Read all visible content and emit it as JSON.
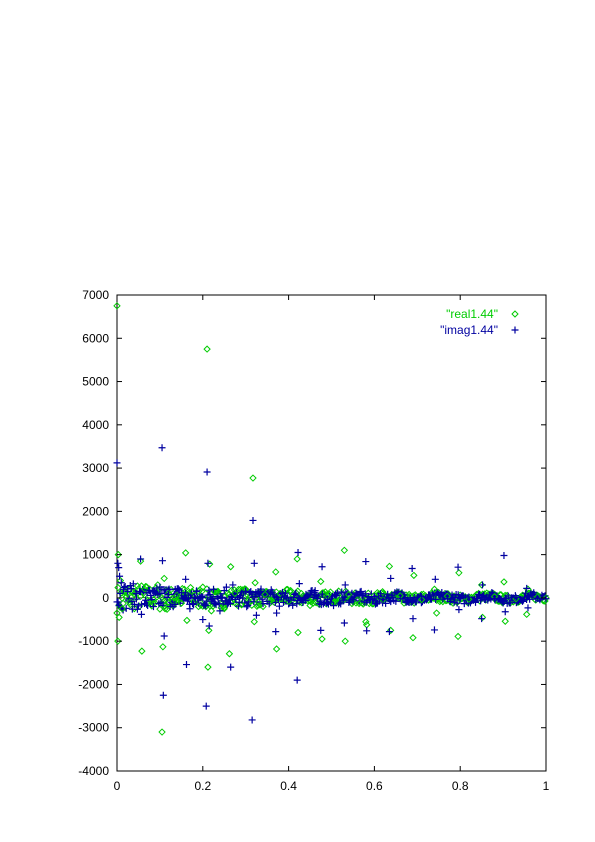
{
  "chart_data": {
    "type": "scatter",
    "xlim": [
      0,
      1
    ],
    "ylim": [
      -4000,
      7000
    ],
    "xticks": [
      0,
      0.2,
      0.4,
      0.6,
      0.8,
      1
    ],
    "xtick_labels": [
      "0",
      "0.2",
      "0.4",
      "0.6",
      "0.8",
      "1"
    ],
    "yticks": [
      -4000,
      -3000,
      -2000,
      -1000,
      0,
      1000,
      2000,
      3000,
      4000,
      5000,
      6000,
      7000
    ],
    "ytick_labels": [
      "-4000",
      "-3000",
      "-2000",
      "-1000",
      "0",
      "1000",
      "2000",
      "3000",
      "4000",
      "5000",
      "6000",
      "7000"
    ],
    "grid": false,
    "legend_position": "top-right",
    "series": [
      {
        "name": "\"real1.44\"",
        "marker": "diamond",
        "color": "#00cc00",
        "points": [
          [
            0.0,
            6750
          ],
          [
            0.002,
            -1000
          ],
          [
            0.003,
            1000
          ],
          [
            0.005,
            -450
          ],
          [
            0.008,
            400
          ],
          [
            0.012,
            -250
          ],
          [
            0.02,
            150
          ],
          [
            0.03,
            -100
          ],
          [
            0.04,
            80
          ],
          [
            0.055,
            850
          ],
          [
            0.058,
            -1230
          ],
          [
            0.065,
            200
          ],
          [
            0.08,
            -150
          ],
          [
            0.095,
            300
          ],
          [
            0.105,
            -3100
          ],
          [
            0.107,
            -1130
          ],
          [
            0.11,
            450
          ],
          [
            0.112,
            -250
          ],
          [
            0.12,
            100
          ],
          [
            0.13,
            -80
          ],
          [
            0.14,
            60
          ],
          [
            0.15,
            -120
          ],
          [
            0.16,
            1040
          ],
          [
            0.163,
            -520
          ],
          [
            0.175,
            150
          ],
          [
            0.19,
            -200
          ],
          [
            0.2,
            250
          ],
          [
            0.21,
            5750
          ],
          [
            0.212,
            -1600
          ],
          [
            0.214,
            -750
          ],
          [
            0.216,
            780
          ],
          [
            0.22,
            -300
          ],
          [
            0.235,
            150
          ],
          [
            0.25,
            -250
          ],
          [
            0.262,
            -1290
          ],
          [
            0.265,
            720
          ],
          [
            0.275,
            100
          ],
          [
            0.29,
            -150
          ],
          [
            0.3,
            200
          ],
          [
            0.317,
            2770
          ],
          [
            0.32,
            -550
          ],
          [
            0.322,
            350
          ],
          [
            0.33,
            -100
          ],
          [
            0.345,
            80
          ],
          [
            0.36,
            -50
          ],
          [
            0.37,
            600
          ],
          [
            0.372,
            -1180
          ],
          [
            0.38,
            100
          ],
          [
            0.4,
            -80
          ],
          [
            0.42,
            900
          ],
          [
            0.422,
            -800
          ],
          [
            0.43,
            100
          ],
          [
            0.45,
            -70
          ],
          [
            0.475,
            380
          ],
          [
            0.478,
            -950
          ],
          [
            0.49,
            50
          ],
          [
            0.51,
            -60
          ],
          [
            0.53,
            1100
          ],
          [
            0.532,
            -1000
          ],
          [
            0.54,
            80
          ],
          [
            0.56,
            -50
          ],
          [
            0.58,
            -550
          ],
          [
            0.582,
            -620
          ],
          [
            0.6,
            60
          ],
          [
            0.62,
            -40
          ],
          [
            0.635,
            730
          ],
          [
            0.638,
            -750
          ],
          [
            0.66,
            50
          ],
          [
            0.69,
            -920
          ],
          [
            0.692,
            520
          ],
          [
            0.71,
            -40
          ],
          [
            0.74,
            200
          ],
          [
            0.745,
            -350
          ],
          [
            0.77,
            40
          ],
          [
            0.795,
            -890
          ],
          [
            0.797,
            580
          ],
          [
            0.82,
            -30
          ],
          [
            0.85,
            300
          ],
          [
            0.852,
            -450
          ],
          [
            0.88,
            30
          ],
          [
            0.902,
            370
          ],
          [
            0.905,
            -540
          ],
          [
            0.93,
            -20
          ],
          [
            0.955,
            -380
          ],
          [
            0.958,
            200
          ],
          [
            0.98,
            20
          ],
          [
            1.0,
            0
          ]
        ]
      },
      {
        "name": "\"imag1.44\"",
        "marker": "plus",
        "color": "#0000a0",
        "points": [
          [
            0.0,
            3120
          ],
          [
            0.002,
            800
          ],
          [
            0.004,
            700
          ],
          [
            0.006,
            500
          ],
          [
            0.01,
            350
          ],
          [
            0.015,
            200
          ],
          [
            0.025,
            150
          ],
          [
            0.035,
            -80
          ],
          [
            0.045,
            100
          ],
          [
            0.055,
            900
          ],
          [
            0.057,
            -380
          ],
          [
            0.07,
            120
          ],
          [
            0.085,
            -200
          ],
          [
            0.1,
            250
          ],
          [
            0.105,
            3470
          ],
          [
            0.106,
            860
          ],
          [
            0.108,
            -2250
          ],
          [
            0.11,
            -880
          ],
          [
            0.12,
            80
          ],
          [
            0.135,
            -150
          ],
          [
            0.15,
            120
          ],
          [
            0.16,
            430
          ],
          [
            0.162,
            -1540
          ],
          [
            0.17,
            -250
          ],
          [
            0.185,
            150
          ],
          [
            0.2,
            -500
          ],
          [
            0.208,
            -2500
          ],
          [
            0.21,
            2910
          ],
          [
            0.212,
            800
          ],
          [
            0.215,
            -650
          ],
          [
            0.225,
            200
          ],
          [
            0.24,
            -300
          ],
          [
            0.255,
            250
          ],
          [
            0.265,
            -1600
          ],
          [
            0.27,
            300
          ],
          [
            0.285,
            -100
          ],
          [
            0.3,
            150
          ],
          [
            0.315,
            -2820
          ],
          [
            0.317,
            1790
          ],
          [
            0.32,
            800
          ],
          [
            0.325,
            -400
          ],
          [
            0.335,
            150
          ],
          [
            0.35,
            -80
          ],
          [
            0.37,
            -780
          ],
          [
            0.372,
            -350
          ],
          [
            0.385,
            100
          ],
          [
            0.4,
            -50
          ],
          [
            0.42,
            -1900
          ],
          [
            0.422,
            1050
          ],
          [
            0.425,
            330
          ],
          [
            0.44,
            -60
          ],
          [
            0.46,
            70
          ],
          [
            0.475,
            -750
          ],
          [
            0.478,
            720
          ],
          [
            0.49,
            -40
          ],
          [
            0.51,
            60
          ],
          [
            0.53,
            -580
          ],
          [
            0.532,
            300
          ],
          [
            0.55,
            -40
          ],
          [
            0.58,
            840
          ],
          [
            0.582,
            -760
          ],
          [
            0.6,
            30
          ],
          [
            0.62,
            -30
          ],
          [
            0.635,
            -780
          ],
          [
            0.638,
            450
          ],
          [
            0.66,
            -20
          ],
          [
            0.688,
            680
          ],
          [
            0.69,
            -480
          ],
          [
            0.71,
            30
          ],
          [
            0.74,
            -740
          ],
          [
            0.742,
            430
          ],
          [
            0.77,
            -20
          ],
          [
            0.795,
            710
          ],
          [
            0.797,
            -270
          ],
          [
            0.82,
            20
          ],
          [
            0.85,
            -480
          ],
          [
            0.852,
            300
          ],
          [
            0.88,
            -15
          ],
          [
            0.902,
            980
          ],
          [
            0.905,
            -320
          ],
          [
            0.93,
            15
          ],
          [
            0.955,
            220
          ],
          [
            0.958,
            -230
          ],
          [
            0.98,
            -10
          ],
          [
            1.0,
            -20
          ]
        ]
      }
    ]
  }
}
